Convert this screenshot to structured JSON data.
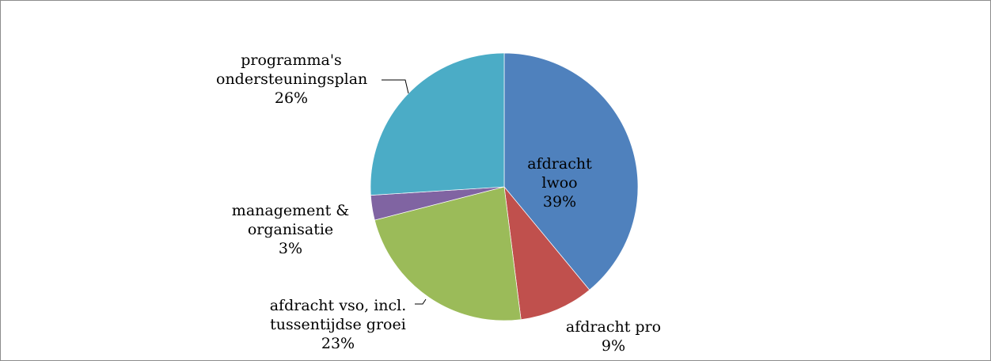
{
  "chart_data": {
    "type": "pie",
    "categories": [
      "afdracht lwoo",
      "afdracht pro",
      "afdracht vso, incl. tussentijdse groei",
      "management & organisatie",
      "programma's ondersteuningsplan"
    ],
    "values": [
      39,
      9,
      23,
      3,
      26
    ],
    "value_labels": [
      "39%",
      "9%",
      "23%",
      "3%",
      "26%"
    ],
    "colors": [
      "#4f81bd",
      "#c0504d",
      "#9bbb59",
      "#8064a2",
      "#4bacc6"
    ]
  }
}
